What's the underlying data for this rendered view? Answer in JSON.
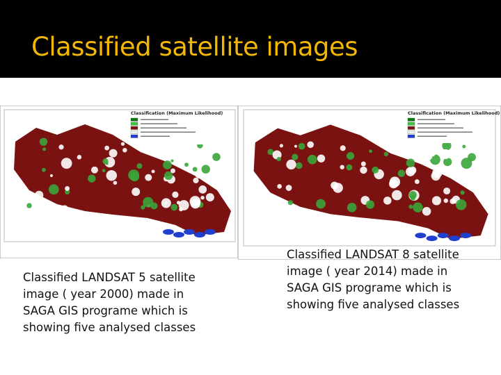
{
  "title": "Classified satellite images",
  "images": [
    {
      "legend_title": "Classification (Maximum Likelihood)",
      "caption": "Classified LANDSAT 5 satellite image ( year 2000) made in SAGA GIS programe which is showing five analysed classes"
    },
    {
      "legend_title": "Classification (Maximum Likelihood)",
      "caption": "Classified LANDSAT 8 satellite image ( year 2014) made in SAGA GIS programe which is showing five analysed classes"
    }
  ]
}
